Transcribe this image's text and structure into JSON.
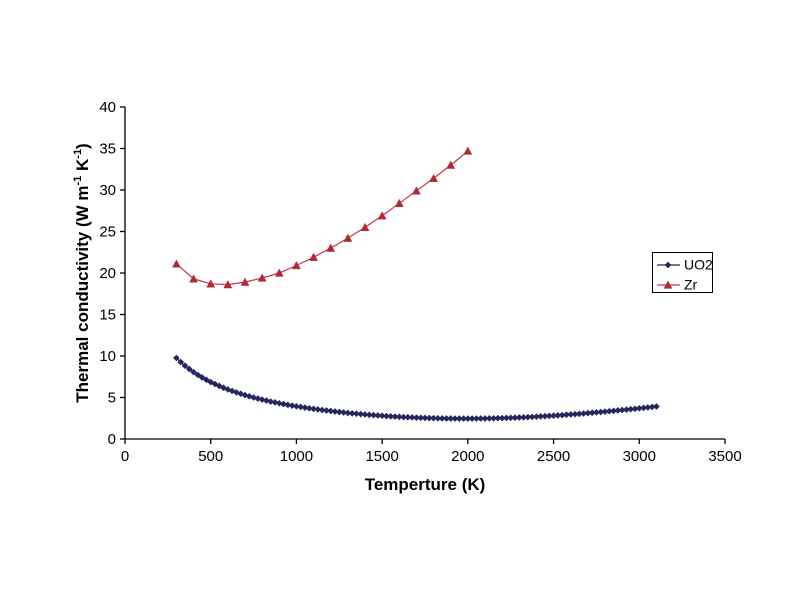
{
  "page": {
    "background": "#ffffff"
  },
  "chart_data": {
    "type": "line",
    "title": "",
    "xlabel": "Temperture (K)",
    "ylabel": "Thermal conductivity (W m-1 K-1)",
    "ylabel_parts": [
      {
        "t": "Thermal conductivity (W m"
      },
      {
        "t": "-1",
        "sup": true
      },
      {
        "t": " K"
      },
      {
        "t": "-1",
        "sup": true
      },
      {
        "t": ")"
      }
    ],
    "xlim": [
      0,
      3500
    ],
    "ylim": [
      0,
      40
    ],
    "x_ticks": [
      0,
      500,
      1000,
      1500,
      2000,
      2500,
      3000,
      3500
    ],
    "y_ticks": [
      0,
      5,
      10,
      15,
      20,
      25,
      30,
      35,
      40
    ],
    "grid": false,
    "plot_border": false,
    "legend_position": "middle-right",
    "axis_color": "#000000",
    "series": [
      {
        "name": "UO2",
        "marker": "diamond",
        "color": "#26265E",
        "line_color": "#26265E",
        "points": [
          [
            300,
            9.76
          ],
          [
            325,
            9.27
          ],
          [
            350,
            8.83
          ],
          [
            375,
            8.43
          ],
          [
            400,
            8.06
          ],
          [
            425,
            7.72
          ],
          [
            450,
            7.41
          ],
          [
            475,
            7.13
          ],
          [
            500,
            6.86
          ],
          [
            525,
            6.62
          ],
          [
            550,
            6.39
          ],
          [
            575,
            6.17
          ],
          [
            600,
            5.97
          ],
          [
            625,
            5.79
          ],
          [
            650,
            5.61
          ],
          [
            675,
            5.45
          ],
          [
            700,
            5.29
          ],
          [
            725,
            5.14
          ],
          [
            750,
            5.0
          ],
          [
            775,
            4.87
          ],
          [
            800,
            4.75
          ],
          [
            825,
            4.63
          ],
          [
            850,
            4.51
          ],
          [
            875,
            4.41
          ],
          [
            900,
            4.3
          ],
          [
            925,
            4.21
          ],
          [
            950,
            4.11
          ],
          [
            975,
            4.02
          ],
          [
            1000,
            3.94
          ],
          [
            1025,
            3.86
          ],
          [
            1050,
            3.78
          ],
          [
            1075,
            3.7
          ],
          [
            1100,
            3.63
          ],
          [
            1125,
            3.56
          ],
          [
            1150,
            3.49
          ],
          [
            1175,
            3.43
          ],
          [
            1200,
            3.37
          ],
          [
            1225,
            3.31
          ],
          [
            1250,
            3.25
          ],
          [
            1275,
            3.2
          ],
          [
            1300,
            3.14
          ],
          [
            1325,
            3.09
          ],
          [
            1350,
            3.05
          ],
          [
            1375,
            3.0
          ],
          [
            1400,
            2.96
          ],
          [
            1425,
            2.91
          ],
          [
            1450,
            2.87
          ],
          [
            1475,
            2.84
          ],
          [
            1500,
            2.8
          ],
          [
            1525,
            2.76
          ],
          [
            1550,
            2.73
          ],
          [
            1575,
            2.7
          ],
          [
            1600,
            2.67
          ],
          [
            1625,
            2.64
          ],
          [
            1650,
            2.62
          ],
          [
            1675,
            2.6
          ],
          [
            1700,
            2.57
          ],
          [
            1725,
            2.55
          ],
          [
            1750,
            2.54
          ],
          [
            1775,
            2.52
          ],
          [
            1800,
            2.51
          ],
          [
            1825,
            2.49
          ],
          [
            1850,
            2.48
          ],
          [
            1875,
            2.47
          ],
          [
            1900,
            2.47
          ],
          [
            1925,
            2.46
          ],
          [
            1950,
            2.46
          ],
          [
            1975,
            2.46
          ],
          [
            2000,
            2.46
          ],
          [
            2025,
            2.46
          ],
          [
            2050,
            2.46
          ],
          [
            2075,
            2.47
          ],
          [
            2100,
            2.47
          ],
          [
            2125,
            2.49
          ],
          [
            2150,
            2.49
          ],
          [
            2175,
            2.51
          ],
          [
            2200,
            2.52
          ],
          [
            2225,
            2.54
          ],
          [
            2250,
            2.55
          ],
          [
            2275,
            2.57
          ],
          [
            2300,
            2.59
          ],
          [
            2325,
            2.61
          ],
          [
            2350,
            2.64
          ],
          [
            2375,
            2.66
          ],
          [
            2400,
            2.69
          ],
          [
            2425,
            2.72
          ],
          [
            2450,
            2.75
          ],
          [
            2475,
            2.78
          ],
          [
            2500,
            2.81
          ],
          [
            2525,
            2.85
          ],
          [
            2550,
            2.88
          ],
          [
            2575,
            2.92
          ],
          [
            2600,
            2.96
          ],
          [
            2625,
            2.99
          ],
          [
            2650,
            3.03
          ],
          [
            2675,
            3.07
          ],
          [
            2700,
            3.12
          ],
          [
            2725,
            3.16
          ],
          [
            2750,
            3.21
          ],
          [
            2775,
            3.25
          ],
          [
            2800,
            3.3
          ],
          [
            2825,
            3.35
          ],
          [
            2850,
            3.39
          ],
          [
            2875,
            3.44
          ],
          [
            2900,
            3.49
          ],
          [
            2925,
            3.54
          ],
          [
            2950,
            3.59
          ],
          [
            2975,
            3.64
          ],
          [
            3000,
            3.7
          ],
          [
            3025,
            3.75
          ],
          [
            3050,
            3.8
          ],
          [
            3075,
            3.86
          ],
          [
            3100,
            3.92
          ]
        ]
      },
      {
        "name": "Zr",
        "marker": "triangle",
        "color": "#B02A35",
        "line_color": "#C23843",
        "points": [
          [
            300,
            21.1
          ],
          [
            400,
            19.3
          ],
          [
            500,
            18.7
          ],
          [
            600,
            18.6
          ],
          [
            700,
            18.9
          ],
          [
            800,
            19.4
          ],
          [
            900,
            20.0
          ],
          [
            1000,
            20.9
          ],
          [
            1100,
            21.9
          ],
          [
            1200,
            23.0
          ],
          [
            1300,
            24.2
          ],
          [
            1400,
            25.5
          ],
          [
            1500,
            26.9
          ],
          [
            1600,
            28.4
          ],
          [
            1700,
            29.9
          ],
          [
            1800,
            31.4
          ],
          [
            1900,
            33.0
          ],
          [
            2000,
            34.7
          ]
        ]
      }
    ]
  }
}
